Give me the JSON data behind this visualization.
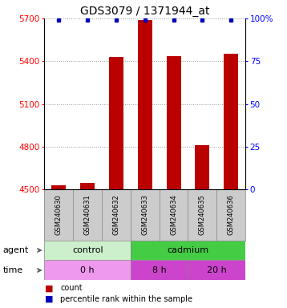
{
  "title": "GDS3079 / 1371944_at",
  "samples": [
    "GSM240630",
    "GSM240631",
    "GSM240632",
    "GSM240633",
    "GSM240634",
    "GSM240635",
    "GSM240636"
  ],
  "counts": [
    4527,
    4545,
    5430,
    5690,
    5435,
    4810,
    5450
  ],
  "percentile_ranks": [
    99,
    99,
    99,
    99,
    99,
    99,
    99
  ],
  "ylim_left": [
    4500,
    5700
  ],
  "ylim_right": [
    0,
    100
  ],
  "yticks_left": [
    4500,
    4800,
    5100,
    5400,
    5700
  ],
  "yticks_right": [
    0,
    25,
    50,
    75,
    100
  ],
  "bar_color": "#bb0000",
  "dot_color": "#0000bb",
  "agent_control_color": "#ccf0cc",
  "agent_cadmium_color": "#44cc44",
  "time_0h_color": "#ee99ee",
  "time_8h_color": "#cc44cc",
  "time_20h_color": "#cc44cc",
  "sample_bg_color": "#cccccc",
  "title_fontsize": 10,
  "tick_fontsize": 7.5,
  "sample_fontsize": 6,
  "row_fontsize": 8,
  "legend_fontsize": 7,
  "bar_width": 0.5
}
